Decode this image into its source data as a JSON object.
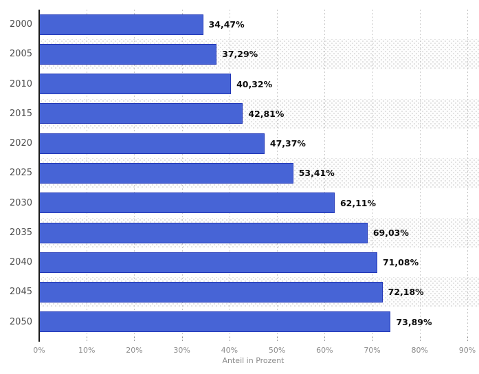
{
  "chart_data": {
    "type": "bar",
    "orientation": "horizontal",
    "title": "",
    "categories": [
      "2000",
      "2005",
      "2010",
      "2015",
      "2020",
      "2025",
      "2030",
      "2035",
      "2040",
      "2045",
      "2050"
    ],
    "values": [
      34.47,
      37.29,
      40.32,
      42.81,
      47.37,
      53.41,
      62.11,
      69.03,
      71.08,
      72.18,
      73.89
    ],
    "value_labels": [
      "34,47%",
      "37,29%",
      "40,32%",
      "42,81%",
      "47,37%",
      "53,41%",
      "62,11%",
      "69,03%",
      "71,08%",
      "72,18%",
      "73,89%"
    ],
    "xlabel": "Anteil in Prozent",
    "ylabel": "",
    "xlim": [
      0,
      90
    ],
    "xtick_step": 10,
    "xtick_labels": [
      "0%",
      "10%",
      "20%",
      "30%",
      "40%",
      "50%",
      "60%",
      "70%",
      "80%",
      "90%"
    ],
    "grid": "vertical-dotted",
    "row_striping": "alternate-dotted",
    "legend": null
  },
  "colors": {
    "bar_fill": "#4764d6",
    "bar_border": "#2136b6",
    "axis_line": "#1a1a1a",
    "category_label": "#4d4d4d",
    "value_label": "#0d0d0d",
    "tick_label": "#8c8c8c",
    "axis_title": "#8c8c8c",
    "gridline": "#c9c9c9",
    "stripe_dot": "#e0e0e0",
    "background": "#ffffff"
  }
}
